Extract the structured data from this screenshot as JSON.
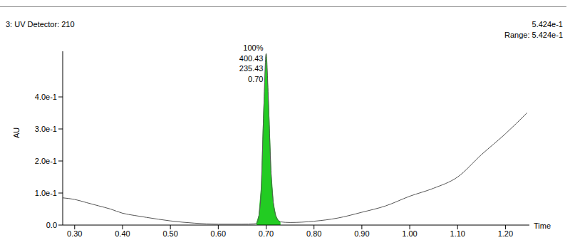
{
  "chart_data": {
    "type": "line",
    "title": "3: UV Detector: 210",
    "subtitle": [
      "5.424e-1",
      "Range: 5.424e-1"
    ],
    "x_label": "Time",
    "y_label": "AU",
    "x": [
      0.275,
      0.3,
      0.325,
      0.35,
      0.375,
      0.4,
      0.425,
      0.45,
      0.5,
      0.55,
      0.6,
      0.65,
      0.675,
      0.68,
      0.685,
      0.69,
      0.695,
      0.7,
      0.705,
      0.71,
      0.715,
      0.72,
      0.725,
      0.73,
      0.75,
      0.8,
      0.85,
      0.9,
      0.95,
      1.0,
      1.05,
      1.1,
      1.15,
      1.2,
      1.245
    ],
    "values": [
      0.085,
      0.08,
      0.07,
      0.06,
      0.05,
      0.037,
      0.03,
      0.024,
      0.013,
      0.006,
      0.003,
      0.003,
      0.004,
      0.006,
      0.03,
      0.12,
      0.36,
      0.535,
      0.38,
      0.17,
      0.07,
      0.03,
      0.015,
      0.01,
      0.008,
      0.012,
      0.022,
      0.04,
      0.06,
      0.09,
      0.115,
      0.15,
      0.22,
      0.285,
      0.35
    ],
    "color": "#555555",
    "peak": {
      "x": 0.7,
      "range": [
        0.68,
        0.73
      ],
      "color": "#22cc22",
      "labels": [
        "100%",
        "400.43",
        "235.43",
        "0.70"
      ]
    },
    "xlim": [
      0.275,
      1.25
    ],
    "xticks": [
      {
        "value": 0.3,
        "label": "0.30"
      },
      {
        "value": 0.4,
        "label": "0.40"
      },
      {
        "value": 0.5,
        "label": "0.50"
      },
      {
        "value": 0.6,
        "label": "0.60"
      },
      {
        "value": 0.7,
        "label": "0.70"
      },
      {
        "value": 0.8,
        "label": "0.80"
      },
      {
        "value": 0.9,
        "label": "0.90"
      },
      {
        "value": 1.0,
        "label": "1.00"
      },
      {
        "value": 1.1,
        "label": "1.10"
      },
      {
        "value": 1.2,
        "label": "1.20"
      }
    ],
    "ylim": [
      0,
      0.5424
    ],
    "yticks": [
      {
        "value": 0,
        "label": "0.0"
      },
      {
        "value": 0.1,
        "label": "1.0e-1"
      },
      {
        "value": 0.2,
        "label": "2.0e-1"
      },
      {
        "value": 0.3,
        "label": "3.0e-1"
      },
      {
        "value": 0.4,
        "label": "4.0e-1"
      }
    ],
    "grid": false
  }
}
